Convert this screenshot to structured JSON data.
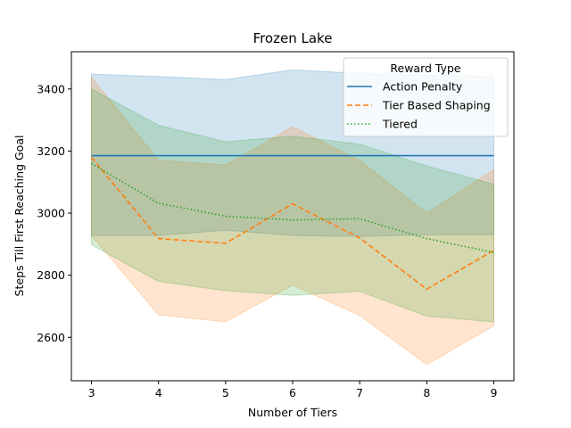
{
  "chart_data": {
    "type": "line",
    "title": "Frozen Lake",
    "xlabel": "Number of Tiers",
    "ylabel": "Steps Till First Reaching Goal",
    "x": [
      3,
      4,
      5,
      6,
      7,
      8,
      9
    ],
    "xlim": [
      2.7,
      9.3
    ],
    "ylim": [
      2460,
      3520
    ],
    "xticks": [
      3,
      4,
      5,
      6,
      7,
      8,
      9
    ],
    "yticks": [
      2600,
      2800,
      3000,
      3200,
      3400
    ],
    "legend": {
      "title": "Reward Type",
      "location": "top-right"
    },
    "series": [
      {
        "name": "Action Penalty",
        "color": "#1f77b4",
        "style": "solid",
        "values": [
          3185,
          3185,
          3185,
          3185,
          3185,
          3185,
          3185
        ],
        "lower": [
          2928,
          2928,
          2945,
          2928,
          2925,
          2930,
          2930
        ],
        "upper": [
          3448,
          3440,
          3430,
          3462,
          3450,
          3445,
          3440
        ]
      },
      {
        "name": "Tier Based Shaping",
        "color": "#ff7f0e",
        "style": "dashed",
        "values": [
          3180,
          2918,
          2903,
          3030,
          2920,
          2755,
          2880
        ],
        "lower": [
          2928,
          2672,
          2650,
          2768,
          2670,
          2512,
          2637
        ],
        "upper": [
          3437,
          3170,
          3155,
          3278,
          3170,
          3000,
          3140
        ]
      },
      {
        "name": "Tiered",
        "color": "#2ca02c",
        "style": "dotted",
        "values": [
          3160,
          3032,
          2990,
          2978,
          2982,
          2918,
          2873
        ],
        "lower": [
          2898,
          2780,
          2750,
          2735,
          2748,
          2668,
          2650
        ],
        "upper": [
          3400,
          3283,
          3230,
          3248,
          3222,
          3152,
          3093
        ]
      }
    ]
  }
}
